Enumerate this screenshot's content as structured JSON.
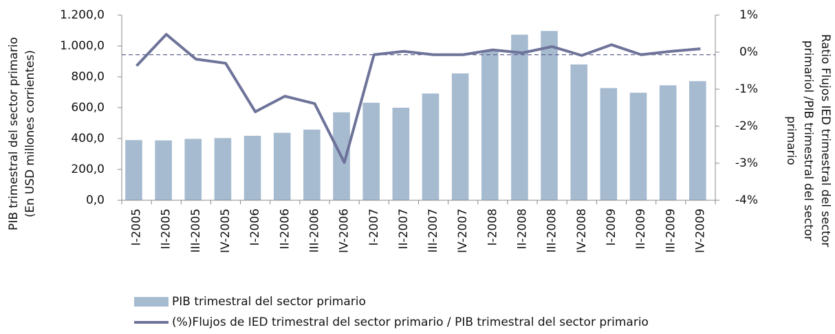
{
  "chart_data": {
    "type": "bar",
    "y_label": [
      "PIB trimestral del sector primario",
      "(En USD millones corrientes)"
    ],
    "y2_label": [
      "Ratio Flujos IED trimestral del sector",
      "primariol /PIB trimestral del sector",
      "primario"
    ],
    "categories": [
      "I-2005",
      "II-2005",
      "III-2005",
      "IV-2005",
      "I-2006",
      "II-2006",
      "III-2006",
      "IV-2006",
      "I-2007",
      "II-2007",
      "III-2007",
      "IV-2007",
      "I-2008",
      "II-2008",
      "III-2008",
      "IV-2008",
      "I-2009",
      "II-2009",
      "III-2009",
      "IV-2009"
    ],
    "series": [
      {
        "name": "PIB trimestral del sector primario",
        "type": "bar",
        "color": "#a6bbd0",
        "values": [
          390,
          388,
          398,
          403,
          418,
          437,
          458,
          570,
          632,
          600,
          692,
          822,
          968,
          1073,
          1097,
          880,
          727,
          697,
          745,
          772
        ]
      },
      {
        "name": "(%)Flujos de IED trimestral del sector primario / PIB trimestral del sector primario",
        "type": "line",
        "axis": "y2",
        "color": "#6e7399",
        "values": [
          -0.37,
          0.48,
          -0.19,
          -0.3,
          -1.61,
          -1.19,
          -1.39,
          -2.98,
          -0.07,
          0.02,
          -0.07,
          -0.07,
          0.06,
          -0.02,
          0.15,
          -0.09,
          0.2,
          -0.07,
          0.02,
          0.09
        ]
      }
    ],
    "reference_line": {
      "axis": "y2",
      "value": -0.07,
      "color": "#5a5f8a"
    },
    "ylim": [
      0,
      1200
    ],
    "yticks": [
      {
        "value": 0,
        "label": "0,0"
      },
      {
        "value": 200,
        "label": "200,0"
      },
      {
        "value": 400,
        "label": "400,0"
      },
      {
        "value": 600,
        "label": "600,0"
      },
      {
        "value": 800,
        "label": "800,0"
      },
      {
        "value": 1000,
        "label": "1.000,0"
      },
      {
        "value": 1200,
        "label": "1.200,0"
      }
    ],
    "y2lim": [
      -4,
      1
    ],
    "y2ticks": [
      {
        "value": 1,
        "label": "1%"
      },
      {
        "value": 0,
        "label": "0%"
      },
      {
        "value": -1,
        "label": "-1%"
      },
      {
        "value": -2,
        "label": "-2%"
      },
      {
        "value": -3,
        "label": "-3%"
      },
      {
        "value": -4,
        "label": "-4%"
      }
    ],
    "legend": "bottom-left"
  }
}
